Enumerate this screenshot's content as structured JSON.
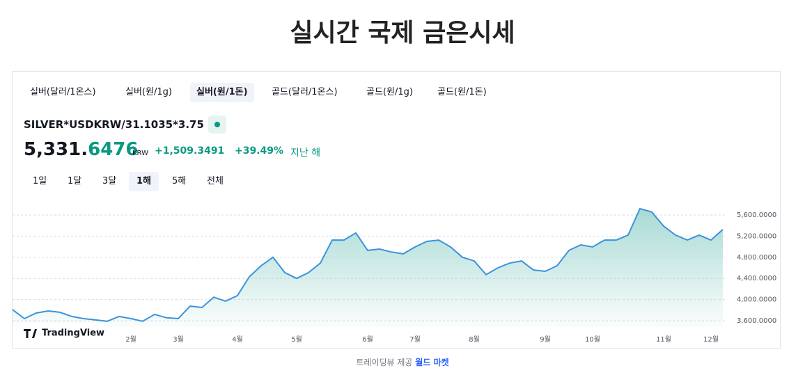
{
  "header": {
    "title": "실시간 국제 금은시세"
  },
  "tabs": {
    "items": [
      "실버(달러/1온스)",
      "실버(원/1g)",
      "실버(원/1돈)",
      "골드(달러/1온스)",
      "골드(원/1g)",
      "골드(원/1돈)"
    ],
    "active": 2
  },
  "symbol": "SILVER*USDKRW/31.1035*3.75",
  "quote": {
    "price_main": "5,331.",
    "price_fraction": "6476",
    "currency": "KRW",
    "change": "+1,509.3491",
    "change_percent": "+39.49%",
    "period": "지난 해"
  },
  "ranges": {
    "items": [
      "1일",
      "1달",
      "3달",
      "1해",
      "5해",
      "전체"
    ],
    "active": 3
  },
  "chart_data": {
    "type": "area",
    "color": "#3a93dc",
    "fill": "#9fd6d0",
    "categories": [
      null,
      null,
      null,
      null,
      null,
      null,
      null,
      null,
      null,
      null,
      "2월",
      null,
      null,
      null,
      "3월",
      null,
      null,
      null,
      null,
      "4월",
      null,
      null,
      null,
      null,
      "5월",
      null,
      null,
      null,
      null,
      null,
      "6월",
      null,
      null,
      null,
      "7월",
      null,
      null,
      null,
      null,
      "8월",
      null,
      null,
      null,
      null,
      null,
      "9월",
      null,
      null,
      null,
      "10월",
      null,
      null,
      null,
      null,
      null,
      "11월",
      null,
      null,
      null,
      "12월",
      null
    ],
    "values": [
      3810,
      3640,
      3745,
      3785,
      3760,
      3680,
      3640,
      3615,
      3590,
      3680,
      3640,
      3590,
      3720,
      3655,
      3640,
      3875,
      3850,
      4045,
      3970,
      4075,
      4430,
      4640,
      4800,
      4510,
      4400,
      4510,
      4690,
      5125,
      5125,
      5260,
      4930,
      4955,
      4900,
      4865,
      4995,
      5100,
      5125,
      4995,
      4800,
      4730,
      4470,
      4600,
      4690,
      4730,
      4560,
      4535,
      4640,
      4930,
      5035,
      4995,
      5125,
      5125,
      5220,
      5720,
      5655,
      5390,
      5220,
      5125,
      5220,
      5125,
      5325
    ],
    "ylim": [
      3482,
      5850
    ],
    "yticks": [
      {
        "value": 3600,
        "label": "3,600.0000"
      },
      {
        "value": 4000,
        "label": "4,000.0000"
      },
      {
        "value": 4400,
        "label": "4,400.0000"
      },
      {
        "value": 4800,
        "label": "4,800.0000"
      },
      {
        "value": 5200,
        "label": "5,200.0000"
      },
      {
        "value": 5600,
        "label": "5,600.0000"
      }
    ],
    "grid": true
  },
  "brand": "TradingView",
  "footer": {
    "prefix": "트레이딩뷰 제공",
    "link": "월드 마켓"
  }
}
